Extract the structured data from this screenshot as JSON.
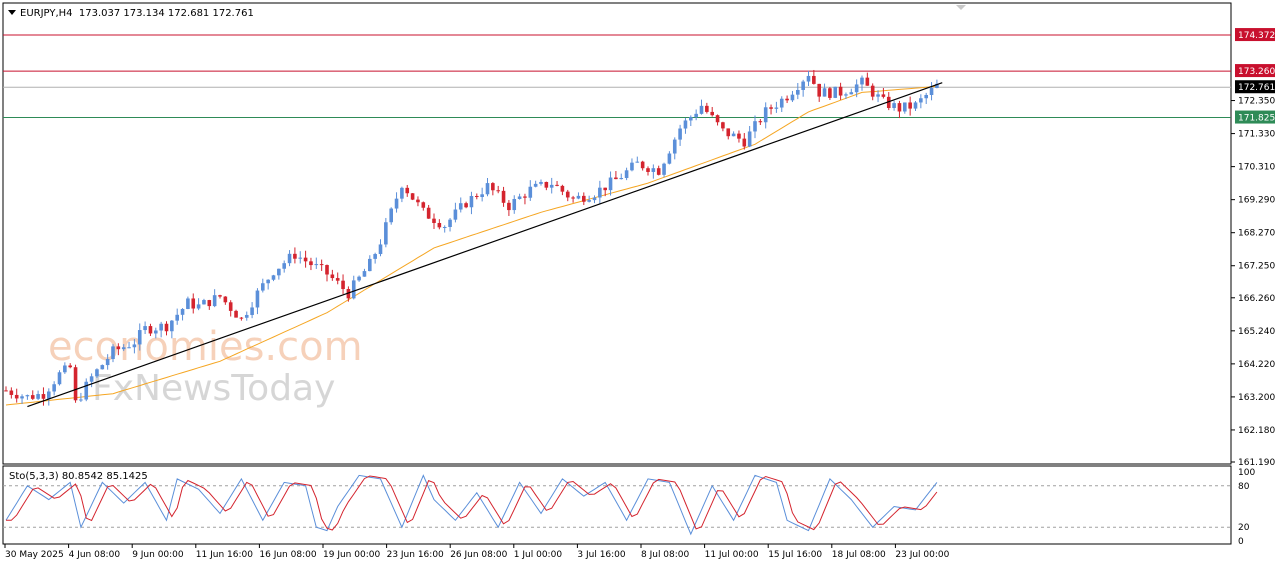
{
  "chart_data": {
    "type": "candlestick",
    "symbol_line": "EURJPY,H4  173.037 173.134 172.681 172.761",
    "header": {
      "symbol": "EURJPY,H4",
      "open": "173.037",
      "high": "173.134",
      "low": "172.681",
      "close": "172.761"
    },
    "price_axis": {
      "ylim": [
        161.19,
        175.3
      ],
      "ticks": [
        "172.350",
        "171.330",
        "170.310",
        "169.290",
        "168.270",
        "167.250",
        "166.260",
        "165.240",
        "164.220",
        "163.200",
        "162.180",
        "161.190"
      ]
    },
    "time_axis_labels": [
      "30 May 2025",
      "4 Jun 08:00",
      "9 Jun 00:00",
      "11 Jun 16:00",
      "16 Jun 08:00",
      "19 Jun 00:00",
      "23 Jun 16:00",
      "26 Jun 08:00",
      "1 Jul 00:00",
      "3 Jul 16:00",
      "8 Jul 08:00",
      "11 Jul 00:00",
      "15 Jul 16:00",
      "18 Jul 08:00",
      "23 Jul 00:00"
    ],
    "horizontal_levels": [
      {
        "value": 174.372,
        "label": "174.372",
        "color": "#c8102e"
      },
      {
        "value": 173.26,
        "label": "173.260",
        "color": "#c8102e"
      },
      {
        "value": 171.825,
        "label": "171.825",
        "color": "#2e8b57"
      }
    ],
    "current_price": {
      "value": 172.761,
      "label": "172.761"
    },
    "trendline": {
      "from": [
        4,
        162.9
      ],
      "to": [
        175,
        172.9
      ]
    },
    "candle_anchors": {
      "index": [
        0,
        4,
        7,
        10,
        12,
        13,
        16,
        20,
        24,
        26,
        30,
        34,
        36,
        40,
        44,
        47,
        50,
        54,
        58,
        60,
        64,
        68,
        70,
        74,
        78,
        82,
        86,
        90,
        94,
        98,
        102,
        106,
        110,
        114,
        118,
        122,
        126,
        130,
        134,
        138,
        142,
        146,
        150,
        152,
        156,
        160,
        164,
        167,
        170,
        174
      ],
      "close": [
        163.4,
        163.2,
        163.3,
        163.9,
        164.1,
        163.0,
        163.8,
        164.6,
        164.9,
        165.3,
        165.4,
        166.1,
        166.0,
        166.3,
        165.6,
        166.4,
        167.1,
        167.6,
        167.2,
        167.0,
        166.4,
        167.3,
        168.0,
        169.8,
        168.9,
        168.5,
        169.2,
        169.7,
        169.1,
        169.6,
        169.8,
        169.3,
        169.5,
        169.9,
        170.4,
        170.2,
        171.5,
        172.2,
        171.4,
        171.1,
        172.0,
        172.5,
        173.2,
        172.6,
        172.6,
        172.9,
        172.3,
        172.1,
        172.2,
        172.8
      ],
      "candles_total": 175
    },
    "ma_anchors": {
      "index": [
        0,
        20,
        40,
        60,
        80,
        100,
        120,
        140,
        150,
        160,
        175
      ],
      "value": [
        162.95,
        163.3,
        164.3,
        165.8,
        167.8,
        168.9,
        169.8,
        171.0,
        172.0,
        172.6,
        172.8
      ]
    },
    "stochastic": {
      "label": "Sto(5,3,3) 80.8542 85.1425",
      "ylim": [
        0,
        100
      ],
      "ticks": [
        "100",
        "80",
        "20",
        "0"
      ],
      "levels": [
        80,
        20
      ],
      "k_anchors": {
        "index": [
          0,
          4,
          8,
          12,
          14,
          18,
          22,
          26,
          30,
          32,
          36,
          40,
          44,
          48,
          52,
          56,
          58,
          60,
          62,
          66,
          70,
          74,
          78,
          80,
          84,
          88,
          92,
          96,
          100,
          104,
          108,
          112,
          116,
          120,
          124,
          128,
          132,
          136,
          140,
          144,
          146,
          150,
          154,
          158,
          162,
          166,
          170,
          174
        ],
        "value": [
          30,
          80,
          60,
          85,
          20,
          85,
          55,
          85,
          30,
          90,
          75,
          40,
          90,
          30,
          85,
          80,
          20,
          15,
          50,
          95,
          90,
          20,
          95,
          60,
          30,
          70,
          20,
          85,
          40,
          90,
          65,
          85,
          30,
          90,
          85,
          10,
          80,
          30,
          95,
          85,
          30,
          15,
          90,
          60,
          20,
          50,
          45,
          85
        ]
      }
    }
  },
  "watermark": {
    "line1": "economies.com",
    "line2": "FxNewsToday"
  },
  "colors": {
    "bull": "#5b8fd9",
    "bear": "#d4242e",
    "ma": "#f5a623",
    "trend": "#000000",
    "stoch_main": "#5b8fd9",
    "stoch_signal": "#d4242e"
  }
}
